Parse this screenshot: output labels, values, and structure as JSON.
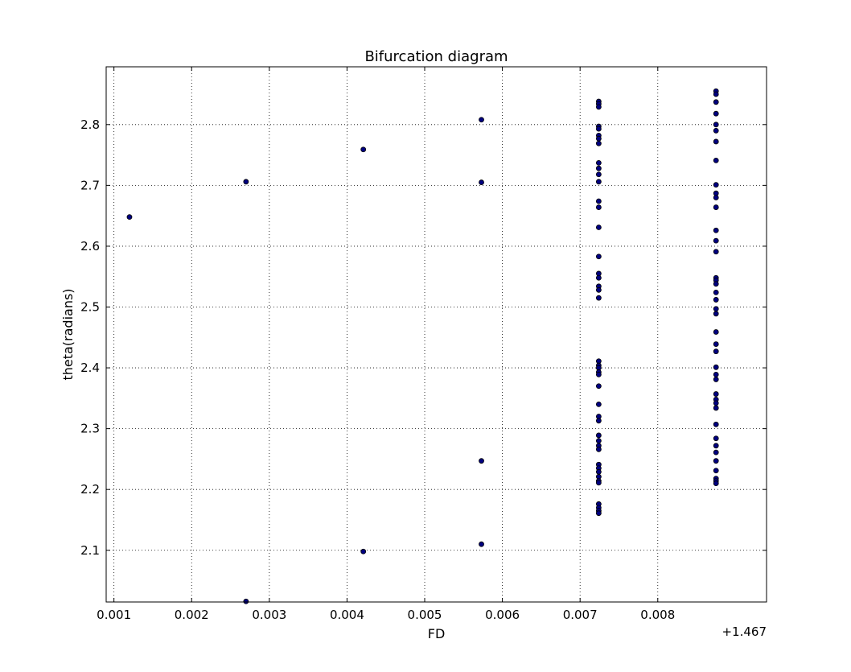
{
  "chart_data": {
    "type": "scatter",
    "title": "Bifurcation diagram",
    "xlabel": "FD",
    "ylabel": "theta(radians)",
    "x_offset_label": "+1.467",
    "xlim": [
      0.0009,
      0.0094
    ],
    "ylim": [
      2.015,
      2.895
    ],
    "x_ticks": [
      0.001,
      0.002,
      0.003,
      0.004,
      0.005,
      0.006,
      0.007,
      0.008
    ],
    "x_tick_labels": [
      "0.001",
      "0.002",
      "0.003",
      "0.004",
      "0.005",
      "0.006",
      "0.007",
      "0.008"
    ],
    "y_ticks": [
      2.1,
      2.2,
      2.3,
      2.4,
      2.5,
      2.6,
      2.7,
      2.8
    ],
    "y_tick_labels": [
      "2.1",
      "2.2",
      "2.3",
      "2.4",
      "2.5",
      "2.6",
      "2.7",
      "2.8"
    ],
    "grid": true,
    "marker_color": "#000080",
    "marker_edge_color": "#000000",
    "series": [
      {
        "points": [
          [
            0.0012,
            2.648
          ],
          [
            0.0027,
            2.706
          ],
          [
            0.0027,
            2.016
          ],
          [
            0.00421,
            2.759
          ],
          [
            0.00421,
            2.098
          ],
          [
            0.00573,
            2.808
          ],
          [
            0.00573,
            2.705
          ],
          [
            0.00573,
            2.247
          ],
          [
            0.00573,
            2.11
          ],
          [
            0.00724,
            2.838
          ],
          [
            0.00724,
            2.834
          ],
          [
            0.00724,
            2.829
          ],
          [
            0.00724,
            2.797
          ],
          [
            0.00724,
            2.793
          ],
          [
            0.00724,
            2.782
          ],
          [
            0.00724,
            2.777
          ],
          [
            0.00724,
            2.769
          ],
          [
            0.00724,
            2.737
          ],
          [
            0.00724,
            2.728
          ],
          [
            0.00724,
            2.718
          ],
          [
            0.00724,
            2.706
          ],
          [
            0.00724,
            2.674
          ],
          [
            0.00724,
            2.664
          ],
          [
            0.00724,
            2.631
          ],
          [
            0.00724,
            2.583
          ],
          [
            0.00724,
            2.555
          ],
          [
            0.00724,
            2.548
          ],
          [
            0.00724,
            2.534
          ],
          [
            0.00724,
            2.528
          ],
          [
            0.00724,
            2.515
          ],
          [
            0.00724,
            2.411
          ],
          [
            0.00724,
            2.404
          ],
          [
            0.00724,
            2.4
          ],
          [
            0.00724,
            2.393
          ],
          [
            0.00724,
            2.389
          ],
          [
            0.00724,
            2.37
          ],
          [
            0.00724,
            2.34
          ],
          [
            0.00724,
            2.32
          ],
          [
            0.00724,
            2.313
          ],
          [
            0.00724,
            2.289
          ],
          [
            0.00724,
            2.28
          ],
          [
            0.00724,
            2.272
          ],
          [
            0.00724,
            2.266
          ],
          [
            0.00724,
            2.241
          ],
          [
            0.00724,
            2.235
          ],
          [
            0.00724,
            2.229
          ],
          [
            0.00724,
            2.221
          ],
          [
            0.00724,
            2.214
          ],
          [
            0.00724,
            2.211
          ],
          [
            0.00724,
            2.176
          ],
          [
            0.00724,
            2.17
          ],
          [
            0.00724,
            2.165
          ],
          [
            0.00724,
            2.161
          ],
          [
            0.00875,
            2.855
          ],
          [
            0.00875,
            2.85
          ],
          [
            0.00875,
            2.837
          ],
          [
            0.00875,
            2.818
          ],
          [
            0.00875,
            2.8
          ],
          [
            0.00875,
            2.79
          ],
          [
            0.00875,
            2.772
          ],
          [
            0.00875,
            2.741
          ],
          [
            0.00875,
            2.701
          ],
          [
            0.00875,
            2.687
          ],
          [
            0.00875,
            2.68
          ],
          [
            0.00875,
            2.664
          ],
          [
            0.00875,
            2.626
          ],
          [
            0.00875,
            2.609
          ],
          [
            0.00875,
            2.591
          ],
          [
            0.00875,
            2.548
          ],
          [
            0.00875,
            2.544
          ],
          [
            0.00875,
            2.538
          ],
          [
            0.00875,
            2.524
          ],
          [
            0.00875,
            2.512
          ],
          [
            0.00875,
            2.497
          ],
          [
            0.00875,
            2.489
          ],
          [
            0.00875,
            2.459
          ],
          [
            0.00875,
            2.439
          ],
          [
            0.00875,
            2.427
          ],
          [
            0.00875,
            2.401
          ],
          [
            0.00875,
            2.389
          ],
          [
            0.00875,
            2.381
          ],
          [
            0.00875,
            2.357
          ],
          [
            0.00875,
            2.348
          ],
          [
            0.00875,
            2.342
          ],
          [
            0.00875,
            2.334
          ],
          [
            0.00875,
            2.307
          ],
          [
            0.00875,
            2.284
          ],
          [
            0.00875,
            2.272
          ],
          [
            0.00875,
            2.261
          ],
          [
            0.00875,
            2.247
          ],
          [
            0.00875,
            2.231
          ],
          [
            0.00875,
            2.218
          ],
          [
            0.00875,
            2.214
          ],
          [
            0.00875,
            2.21
          ]
        ]
      }
    ]
  }
}
